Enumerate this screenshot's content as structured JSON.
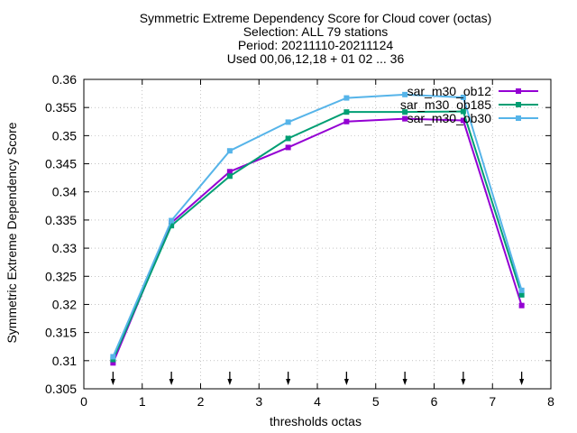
{
  "chart_data": {
    "type": "line",
    "title_lines": [
      "Symmetric Extreme Dependency Score  for Cloud cover (octas)",
      "Selection: ALL     79 stations",
      "Period: 20211110-20211124",
      "Used 00,06,12,18 + 01 02 ... 36"
    ],
    "xlabel": "thresholds octas",
    "ylabel": "Symmetric Extreme Dependency Score",
    "xlim": [
      0,
      8
    ],
    "ylim": [
      0.305,
      0.36
    ],
    "x_ticks": [
      "0",
      "1",
      "2",
      "3",
      "4",
      "5",
      "6",
      "7",
      "8"
    ],
    "y_ticks": [
      "0.305",
      "0.31",
      "0.315",
      "0.32",
      "0.325",
      "0.33",
      "0.335",
      "0.34",
      "0.345",
      "0.35",
      "0.355",
      "0.36"
    ],
    "x": [
      0.5,
      1.5,
      2.5,
      3.5,
      4.5,
      5.5,
      6.5,
      7.5
    ],
    "legend_position": "top-right",
    "series": [
      {
        "name": "sar_m30_ob12",
        "color": "#9400d3",
        "values": [
          0.3096,
          0.3345,
          0.3436,
          0.3479,
          0.3525,
          0.353,
          0.3527,
          0.3198
        ]
      },
      {
        "name": "sar_m30_ob185",
        "color": "#009e73",
        "values": [
          0.3102,
          0.334,
          0.3428,
          0.3495,
          0.3542,
          0.3542,
          0.3543,
          0.3217
        ]
      },
      {
        "name": "sar_m30_ob30",
        "color": "#56b4e9",
        "values": [
          0.3107,
          0.3349,
          0.3473,
          0.3524,
          0.3567,
          0.3573,
          0.3568,
          0.3225
        ]
      }
    ]
  }
}
